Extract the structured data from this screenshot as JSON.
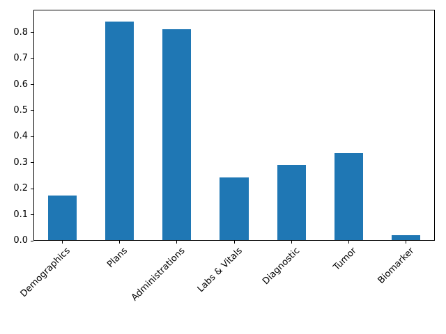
{
  "figure": {
    "background": "#ffffff",
    "spine_color": "#000000"
  },
  "chart_data": {
    "type": "bar",
    "title": "",
    "xlabel": "",
    "ylabel": "",
    "categories": [
      "Demographics",
      "Plans",
      "Administrations",
      "Labs & Vitals",
      "Diagnostic",
      "Tumor",
      "Biomarker"
    ],
    "values": [
      0.17,
      0.84,
      0.81,
      0.24,
      0.29,
      0.335,
      0.02
    ],
    "yticks": [
      0.0,
      0.1,
      0.2,
      0.3,
      0.4,
      0.5,
      0.6,
      0.7,
      0.8
    ],
    "ytick_label_format": "one_decimal",
    "ylim": [
      0,
      0.8875
    ],
    "bar_color": "#1f77b4",
    "bar_width_fraction": 0.5,
    "xtick_label_rotation_deg": 45,
    "grid": false,
    "legend_position": "none"
  }
}
